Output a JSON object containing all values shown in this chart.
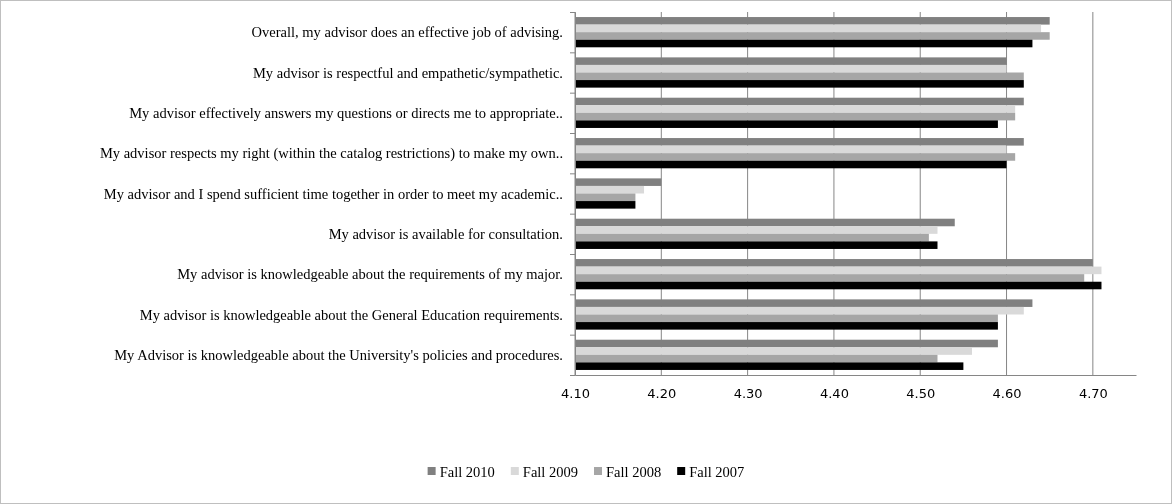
{
  "chart_data": {
    "type": "bar",
    "orientation": "horizontal",
    "categories": [
      "Overall, my advisor does an effective job of advising.",
      "My advisor is  respectful and empathetic/sympathetic.",
      "My advisor effectively answers my questions or directs me to appropriate..",
      "My advisor respects my right  (within the catalog restrictions) to make my own..",
      "My advisor and I spend sufficient time together in order to meet my academic..",
      "My advisor is  available for consultation.",
      "My advisor is  knowledgeable about the requirements of my major.",
      "My advisor is  knowledgeable about the General Education requirements.",
      "My Advisor is knowledgeable about the University's policies and procedures."
    ],
    "series": [
      {
        "name": "Fall 2010",
        "color": "#808080",
        "values": [
          4.65,
          4.6,
          4.62,
          4.62,
          4.2,
          4.54,
          4.7,
          4.63,
          4.59
        ]
      },
      {
        "name": "Fall 2009",
        "color": "#d9d9d9",
        "values": [
          4.64,
          4.6,
          4.61,
          4.6,
          4.18,
          4.52,
          4.71,
          4.62,
          4.56
        ]
      },
      {
        "name": "Fall 2008",
        "color": "#a6a6a6",
        "values": [
          4.65,
          4.62,
          4.61,
          4.61,
          4.17,
          4.51,
          4.69,
          4.59,
          4.52
        ]
      },
      {
        "name": "Fall 2007",
        "color": "#000000",
        "values": [
          4.63,
          4.62,
          4.59,
          4.6,
          4.17,
          4.52,
          4.71,
          4.59,
          4.55
        ]
      }
    ],
    "xlim": [
      4.1,
      4.75
    ],
    "xticks": [
      {
        "value": 4.1,
        "label": "4.10"
      },
      {
        "value": 4.2,
        "label": "4.20"
      },
      {
        "value": 4.3,
        "label": "4.30"
      },
      {
        "value": 4.4,
        "label": "4.40"
      },
      {
        "value": 4.5,
        "label": "4.50"
      },
      {
        "value": 4.6,
        "label": "4.60"
      },
      {
        "value": 4.7,
        "label": "4.70"
      }
    ],
    "grid": "x",
    "legend": "bottom"
  }
}
